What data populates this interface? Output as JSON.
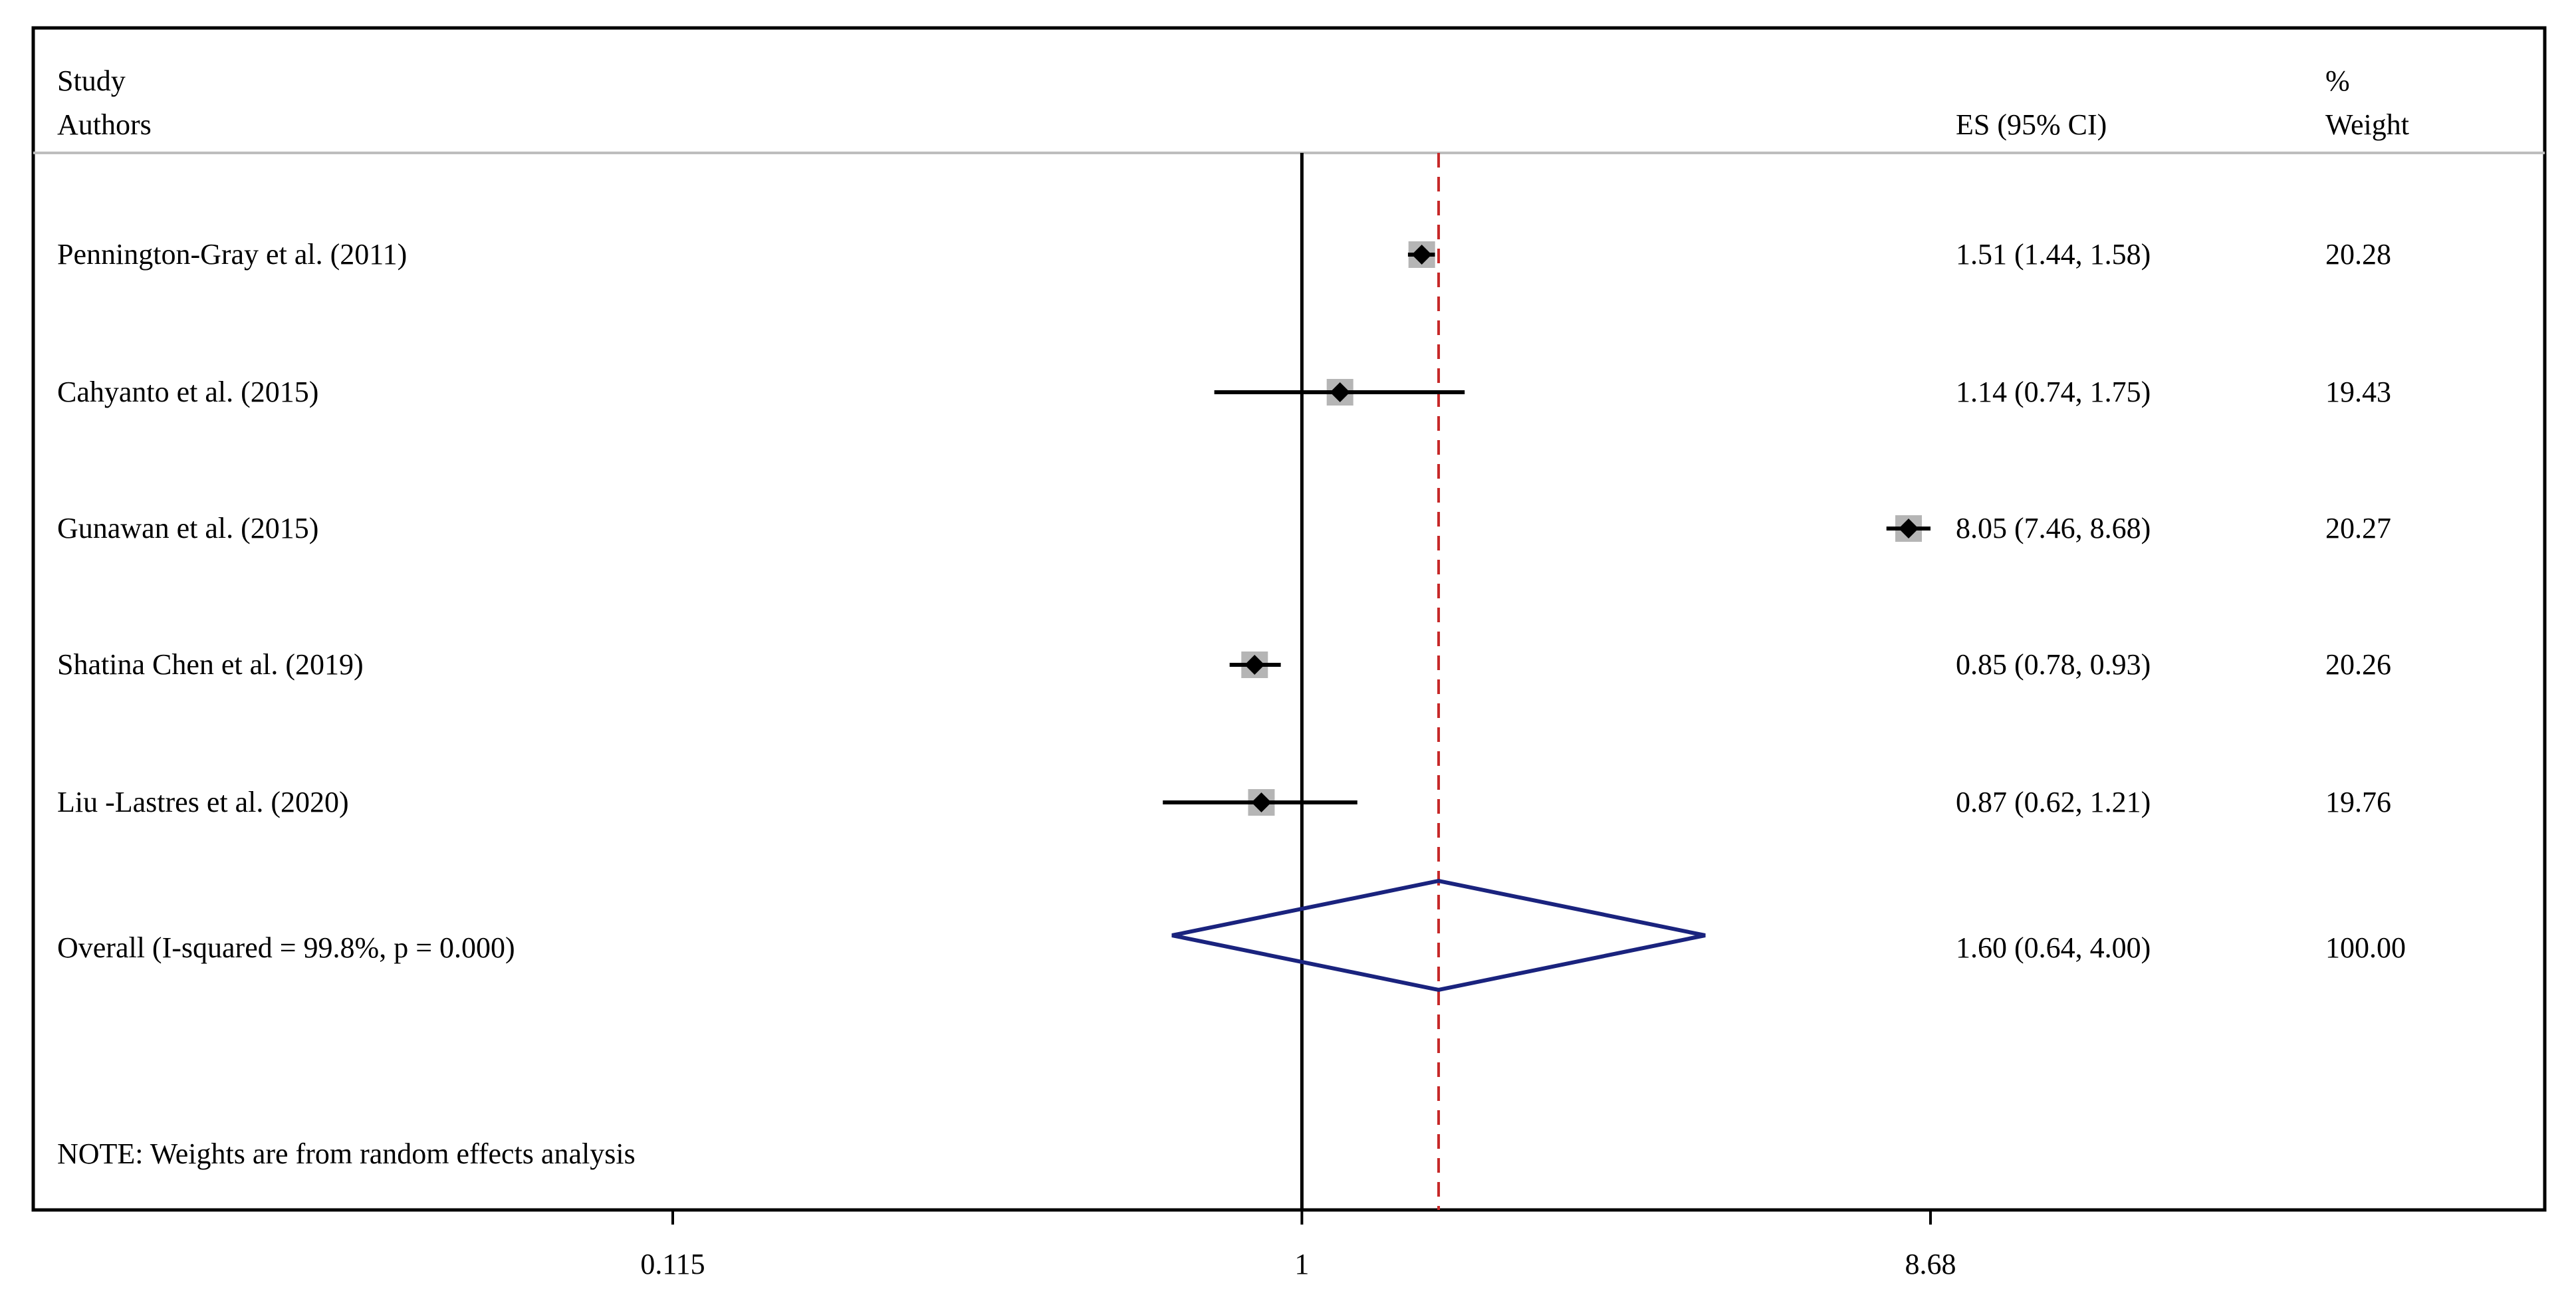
{
  "chart_data": {
    "type": "forest",
    "columns": {
      "study_line1": "Study",
      "study_line2": "Authors",
      "es": "ES (95% CI)",
      "weight_line1": "%",
      "weight_line2": "Weight"
    },
    "scale": "log",
    "xlim": [
      0.115,
      8.68
    ],
    "xticks": [
      {
        "value": 0.115,
        "label": "0.115"
      },
      {
        "value": 1,
        "label": "1"
      },
      {
        "value": 8.68,
        "label": "8.68"
      }
    ],
    "null_line": 1,
    "studies": [
      {
        "label": "Pennington-Gray  et al.  (2011)",
        "es": 1.51,
        "lo": 1.44,
        "hi": 1.58,
        "es_text": "1.51 (1.44, 1.58)",
        "weight": "20.28"
      },
      {
        "label": "Cahyanto et al. (2015)",
        "es": 1.14,
        "lo": 0.74,
        "hi": 1.75,
        "es_text": "1.14 (0.74, 1.75)",
        "weight": "19.43"
      },
      {
        "label": "Gunawan et al. (2015)",
        "es": 8.05,
        "lo": 7.46,
        "hi": 8.68,
        "es_text": "8.05 (7.46, 8.68)",
        "weight": "20.27"
      },
      {
        "label": "Shatina Chen et al.  (2019)",
        "es": 0.85,
        "lo": 0.78,
        "hi": 0.93,
        "es_text": "0.85 (0.78, 0.93)",
        "weight": "20.26"
      },
      {
        "label": "Liu -Lastres et al. (2020)",
        "es": 0.87,
        "lo": 0.62,
        "hi": 1.21,
        "es_text": "0.87 (0.62, 1.21)",
        "weight": "19.76"
      }
    ],
    "overall": {
      "label": "Overall   (I-squared = 99.8%,  p = 0.000)",
      "es": 1.6,
      "lo": 0.64,
      "hi": 4.0,
      "es_text": "1.60 (0.64, 4.00)",
      "weight": "100.00"
    },
    "note": "NOTE: Weights are from random effects analysis",
    "colors": {
      "marker": "#000000",
      "box": "#b5b5b5",
      "diamond": "#1a237e",
      "overall_line": "#c62828",
      "header_rule": "#bdbdbd"
    }
  }
}
